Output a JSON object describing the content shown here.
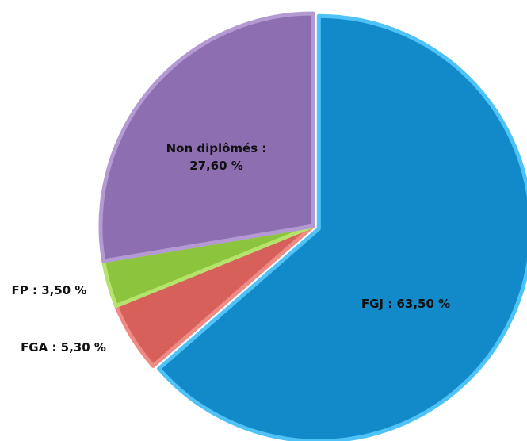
{
  "chart_data": {
    "type": "pie",
    "categories": [
      "FGJ",
      "FGA",
      "FP",
      "Non diplômés"
    ],
    "values": [
      63.5,
      5.3,
      3.5,
      27.6
    ],
    "value_labels": [
      "FGJ : 63,50 %",
      "FGA : 5,30 %",
      "FP : 3,50 %",
      "Non diplômés : 27,60 %"
    ],
    "colors": [
      "#1289c9",
      "#d8605b",
      "#8cc43e",
      "#8d6eb0"
    ]
  }
}
